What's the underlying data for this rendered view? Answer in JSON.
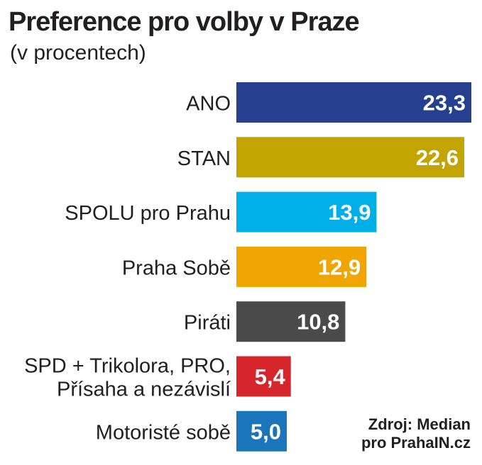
{
  "header": {
    "title": "Preference pro volby v Praze",
    "subtitle": "(v procentech)"
  },
  "source": {
    "line1": "Zdroj: Median",
    "line2": "pro PrahaIN.cz"
  },
  "chart_data": {
    "type": "bar",
    "orientation": "horizontal",
    "title": "Preference pro volby v Praze",
    "subtitle": "(v procentech)",
    "xlabel": "",
    "ylabel": "",
    "grid": false,
    "legend": "none",
    "xlim": [
      0,
      23.3
    ],
    "categories": [
      [
        "ANO"
      ],
      [
        "STAN"
      ],
      [
        "SPOLU pro Prahu"
      ],
      [
        "Praha Sobě"
      ],
      [
        "Piráti"
      ],
      [
        "SPD + Trikolora, PRO,",
        "Přísaha a nezávislí"
      ],
      [
        "Motoristé sobě"
      ]
    ],
    "values": [
      23.3,
      22.6,
      13.9,
      12.9,
      10.8,
      5.4,
      5.0
    ],
    "value_labels": [
      "23,3",
      "22,6",
      "13,9",
      "12,9",
      "10,8",
      "5,4",
      "5,0"
    ],
    "colors": [
      "#24408f",
      "#c2a500",
      "#00aee8",
      "#f0a500",
      "#4a4a4a",
      "#d7262b",
      "#1b75bb"
    ]
  }
}
